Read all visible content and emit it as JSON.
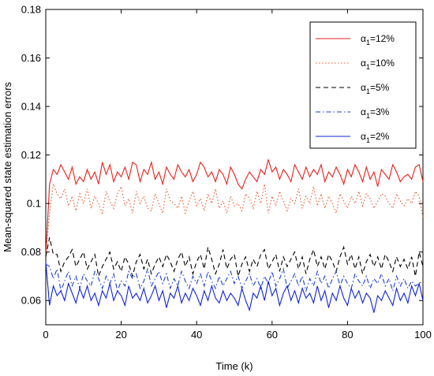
{
  "chart_data": {
    "type": "line",
    "xlabel": "Time (k)",
    "ylabel": "Mean-squared state estimation errors",
    "xlim": [
      0,
      100
    ],
    "ylim": [
      0.05,
      0.18
    ],
    "xticks": [
      0,
      20,
      40,
      60,
      80,
      100
    ],
    "yticks": [
      0.06,
      0.08,
      0.1,
      0.12,
      0.14,
      0.16,
      0.18
    ],
    "xtick_labels": [
      "0",
      "20",
      "40",
      "60",
      "80",
      "100"
    ],
    "ytick_labels": [
      "0.06",
      "0.08",
      "0.1",
      "0.12",
      "0.14",
      "0.16",
      "0.18"
    ],
    "grid": false,
    "legend_position": "top-right",
    "x": [
      0,
      1,
      2,
      3,
      4,
      5,
      6,
      7,
      8,
      9,
      10,
      11,
      12,
      13,
      14,
      15,
      16,
      17,
      18,
      19,
      20,
      21,
      22,
      23,
      24,
      25,
      26,
      27,
      28,
      29,
      30,
      31,
      32,
      33,
      34,
      35,
      36,
      37,
      38,
      39,
      40,
      41,
      42,
      43,
      44,
      45,
      46,
      47,
      48,
      49,
      50,
      51,
      52,
      53,
      54,
      55,
      56,
      57,
      58,
      59,
      60,
      61,
      62,
      63,
      64,
      65,
      66,
      67,
      68,
      69,
      70,
      71,
      72,
      73,
      74,
      75,
      76,
      77,
      78,
      79,
      80,
      81,
      82,
      83,
      84,
      85,
      86,
      87,
      88,
      89,
      90,
      91,
      92,
      93,
      94,
      95,
      96,
      97,
      98,
      99,
      100
    ],
    "series": [
      {
        "name_prefix": "α",
        "name_sub": "1",
        "name_suffix": "=12%",
        "color": "#e8201c",
        "dash": "",
        "values": [
          0.078,
          0.108,
          0.114,
          0.112,
          0.116,
          0.113,
          0.11,
          0.115,
          0.108,
          0.111,
          0.109,
          0.114,
          0.11,
          0.113,
          0.108,
          0.117,
          0.112,
          0.116,
          0.109,
          0.113,
          0.111,
          0.115,
          0.11,
          0.117,
          0.116,
          0.109,
          0.114,
          0.112,
          0.117,
          0.11,
          0.113,
          0.108,
          0.115,
          0.112,
          0.11,
          0.116,
          0.113,
          0.111,
          0.114,
          0.109,
          0.112,
          0.117,
          0.115,
          0.111,
          0.113,
          0.109,
          0.114,
          0.112,
          0.108,
          0.115,
          0.112,
          0.108,
          0.106,
          0.11,
          0.113,
          0.111,
          0.109,
          0.114,
          0.112,
          0.118,
          0.113,
          0.115,
          0.11,
          0.114,
          0.112,
          0.109,
          0.116,
          0.113,
          0.11,
          0.115,
          0.111,
          0.114,
          0.112,
          0.116,
          0.109,
          0.113,
          0.111,
          0.115,
          0.112,
          0.108,
          0.114,
          0.111,
          0.116,
          0.113,
          0.109,
          0.115,
          0.11,
          0.113,
          0.107,
          0.114,
          0.112,
          0.11,
          0.116,
          0.113,
          0.109,
          0.111,
          0.112,
          0.11,
          0.115,
          0.116,
          0.109
        ]
      },
      {
        "name_prefix": "α",
        "name_sub": "1",
        "name_suffix": "=10%",
        "color": "#e8572a",
        "dash": "1.5,2.5",
        "values": [
          0.079,
          0.096,
          0.108,
          0.104,
          0.102,
          0.106,
          0.099,
          0.103,
          0.097,
          0.104,
          0.1,
          0.106,
          0.098,
          0.103,
          0.1,
          0.096,
          0.105,
          0.101,
          0.098,
          0.104,
          0.107,
          0.099,
          0.102,
          0.096,
          0.105,
          0.1,
          0.103,
          0.098,
          0.097,
          0.104,
          0.1,
          0.096,
          0.106,
          0.101,
          0.1,
          0.098,
          0.103,
          0.096,
          0.101,
          0.105,
          0.099,
          0.102,
          0.097,
          0.104,
          0.1,
          0.106,
          0.098,
          0.101,
          0.096,
          0.103,
          0.099,
          0.1,
          0.097,
          0.104,
          0.102,
          0.098,
          0.105,
          0.1,
          0.108,
          0.096,
          0.103,
          0.099,
          0.105,
          0.101,
          0.097,
          0.102,
          0.1,
          0.106,
          0.098,
          0.103,
          0.1,
          0.107,
          0.099,
          0.104,
          0.098,
          0.103,
          0.1,
          0.096,
          0.104,
          0.101,
          0.098,
          0.103,
          0.1,
          0.105,
          0.099,
          0.104,
          0.102,
          0.098,
          0.101,
          0.104,
          0.103,
          0.1,
          0.098,
          0.104,
          0.101,
          0.099,
          0.102,
          0.1,
          0.105,
          0.103,
          0.094
        ]
      },
      {
        "name_prefix": "α",
        "name_sub": "1",
        "name_suffix": "=5%",
        "color": "#000000",
        "dash": "6,4",
        "values": [
          0.078,
          0.086,
          0.079,
          0.079,
          0.072,
          0.076,
          0.078,
          0.081,
          0.074,
          0.077,
          0.08,
          0.073,
          0.076,
          0.079,
          0.07,
          0.074,
          0.077,
          0.08,
          0.073,
          0.076,
          0.072,
          0.078,
          0.075,
          0.07,
          0.076,
          0.079,
          0.073,
          0.077,
          0.071,
          0.075,
          0.078,
          0.074,
          0.079,
          0.076,
          0.072,
          0.077,
          0.08,
          0.074,
          0.078,
          0.071,
          0.076,
          0.079,
          0.073,
          0.082,
          0.077,
          0.071,
          0.075,
          0.081,
          0.073,
          0.077,
          0.079,
          0.07,
          0.075,
          0.078,
          0.072,
          0.077,
          0.074,
          0.079,
          0.081,
          0.073,
          0.076,
          0.079,
          0.072,
          0.078,
          0.074,
          0.077,
          0.08,
          0.073,
          0.078,
          0.071,
          0.077,
          0.081,
          0.074,
          0.078,
          0.073,
          0.079,
          0.076,
          0.072,
          0.078,
          0.082,
          0.075,
          0.079,
          0.073,
          0.078,
          0.071,
          0.076,
          0.079,
          0.074,
          0.078,
          0.073,
          0.079,
          0.076,
          0.072,
          0.078,
          0.074,
          0.077,
          0.073,
          0.078,
          0.07,
          0.08,
          0.074
        ]
      },
      {
        "name_prefix": "α",
        "name_sub": "1",
        "name_suffix": "=3%",
        "color": "#1a3fd4",
        "dash": "6,3,1.5,3",
        "values": [
          0.075,
          0.074,
          0.069,
          0.073,
          0.064,
          0.068,
          0.072,
          0.066,
          0.07,
          0.065,
          0.071,
          0.068,
          0.066,
          0.072,
          0.069,
          0.065,
          0.07,
          0.067,
          0.071,
          0.064,
          0.068,
          0.066,
          0.072,
          0.069,
          0.071,
          0.065,
          0.068,
          0.073,
          0.066,
          0.069,
          0.072,
          0.067,
          0.071,
          0.065,
          0.069,
          0.066,
          0.072,
          0.068,
          0.065,
          0.07,
          0.067,
          0.071,
          0.066,
          0.072,
          0.068,
          0.065,
          0.07,
          0.066,
          0.069,
          0.072,
          0.067,
          0.07,
          0.065,
          0.068,
          0.071,
          0.066,
          0.069,
          0.065,
          0.07,
          0.067,
          0.072,
          0.066,
          0.069,
          0.073,
          0.065,
          0.068,
          0.071,
          0.066,
          0.07,
          0.064,
          0.069,
          0.066,
          0.072,
          0.067,
          0.07,
          0.065,
          0.069,
          0.072,
          0.066,
          0.07,
          0.067,
          0.065,
          0.071,
          0.068,
          0.066,
          0.07,
          0.065,
          0.069,
          0.067,
          0.071,
          0.066,
          0.069,
          0.064,
          0.07,
          0.066,
          0.069,
          0.065,
          0.068,
          0.066,
          0.067,
          0.068
        ]
      },
      {
        "name_prefix": "α",
        "name_sub": "1",
        "name_suffix": "=2%",
        "color": "#0f22e0",
        "dash": "",
        "values": [
          0.076,
          0.058,
          0.066,
          0.062,
          0.064,
          0.06,
          0.067,
          0.063,
          0.059,
          0.065,
          0.061,
          0.066,
          0.06,
          0.063,
          0.058,
          0.064,
          0.061,
          0.067,
          0.06,
          0.064,
          0.062,
          0.058,
          0.066,
          0.061,
          0.063,
          0.06,
          0.065,
          0.059,
          0.062,
          0.066,
          0.06,
          0.064,
          0.057,
          0.063,
          0.061,
          0.066,
          0.059,
          0.063,
          0.06,
          0.065,
          0.062,
          0.058,
          0.064,
          0.06,
          0.066,
          0.061,
          0.059,
          0.064,
          0.06,
          0.063,
          0.061,
          0.058,
          0.065,
          0.06,
          0.056,
          0.063,
          0.061,
          0.066,
          0.06,
          0.068,
          0.062,
          0.065,
          0.058,
          0.063,
          0.066,
          0.06,
          0.064,
          0.059,
          0.065,
          0.061,
          0.063,
          0.059,
          0.066,
          0.06,
          0.064,
          0.057,
          0.063,
          0.06,
          0.066,
          0.061,
          0.058,
          0.065,
          0.061,
          0.064,
          0.059,
          0.063,
          0.061,
          0.055,
          0.062,
          0.06,
          0.064,
          0.061,
          0.058,
          0.065,
          0.06,
          0.063,
          0.059,
          0.066,
          0.062,
          0.067,
          0.06
        ]
      }
    ]
  }
}
